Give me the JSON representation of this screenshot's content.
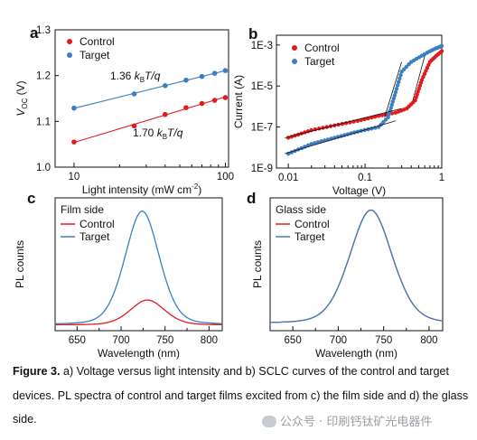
{
  "chart_data": [
    {
      "panel": "a",
      "type": "scatter",
      "xlabel": "Light intensity (mW cm",
      "xlabel_sup": "-2",
      "xlabel_end": ")",
      "ylabel": "V",
      "ylabel_sub": "OC",
      "ylabel_unit": " (V)",
      "xscale": "log",
      "xlim": [
        7.5,
        105
      ],
      "ylim": [
        1.0,
        1.3
      ],
      "xticks": [
        10,
        100
      ],
      "xtick_labels": [
        "10",
        "100"
      ],
      "yticks": [
        1.0,
        1.1,
        1.2,
        1.3
      ],
      "ytick_labels": [
        "1.0",
        "1.1",
        "1.2",
        "1.3"
      ],
      "legend_position": "top-left",
      "series": [
        {
          "name": "Control",
          "color": "#e31a1c",
          "x": [
            10,
            25,
            40,
            55,
            70,
            85,
            100
          ],
          "y": [
            1.055,
            1.09,
            1.115,
            1.13,
            1.139,
            1.146,
            1.152
          ]
        },
        {
          "name": "Target",
          "color": "#3a7fc1",
          "x": [
            10,
            25,
            40,
            55,
            70,
            85,
            100
          ],
          "y": [
            1.129,
            1.16,
            1.178,
            1.19,
            1.198,
            1.205,
            1.211
          ]
        }
      ],
      "annotations": [
        {
          "prefix": "1.36 ",
          "k": "k",
          "B": "B",
          "suffix": "T/q",
          "series": "Target"
        },
        {
          "prefix": "1.70 ",
          "k": "k",
          "B": "B",
          "suffix": "T/q",
          "series": "Control"
        }
      ]
    },
    {
      "panel": "b",
      "type": "scatter",
      "xlabel": "Voltage (V)",
      "ylabel": "Current (A)",
      "xscale": "log",
      "yscale": "log",
      "xlim": [
        0.007,
        1.0
      ],
      "ylim": [
        1e-09,
        0.003
      ],
      "xtick_labels": [
        "0.01",
        "0.1",
        "1"
      ],
      "ytick_labels": [
        "1E-9",
        "1E-7",
        "1E-5",
        "1E-3"
      ],
      "legend_position": "top-left",
      "series": [
        {
          "name": "Control",
          "color": "#e31a1c",
          "x": [
            0.01,
            0.02,
            0.04,
            0.08,
            0.15,
            0.25,
            0.35,
            0.45,
            0.55,
            0.7,
            0.85,
            1.0
          ],
          "y": [
            3e-08,
            7e-08,
            1.2e-07,
            2e-07,
            3.5e-07,
            5e-07,
            8e-07,
            2e-06,
            2e-05,
            0.00015,
            0.0003,
            0.0005
          ]
        },
        {
          "name": "Target",
          "color": "#3a7fc1",
          "x": [
            0.01,
            0.02,
            0.04,
            0.08,
            0.15,
            0.2,
            0.25,
            0.3,
            0.4,
            0.55,
            0.7,
            0.85,
            1.0
          ],
          "y": [
            5e-09,
            1.5e-08,
            3e-08,
            6e-08,
            1e-07,
            3e-07,
            5e-06,
            5e-05,
            0.00015,
            0.0003,
            0.0005,
            0.0007,
            0.0009
          ]
        }
      ]
    },
    {
      "panel": "c",
      "type": "line",
      "xlabel": "Wavelength (nm)",
      "ylabel": "PL counts",
      "xlim": [
        625,
        815
      ],
      "xticks": [
        650,
        700,
        750,
        800
      ],
      "xtick_labels": [
        "650",
        "700",
        "750",
        "800"
      ],
      "legend_title": "Film side",
      "legend_position": "top-left",
      "series": [
        {
          "name": "Control",
          "color": "#e31a1c",
          "peak": 730,
          "sigma": 20,
          "amp": 0.22,
          "base": 0.01
        },
        {
          "name": "Target",
          "color": "#3a7fc1",
          "peak": 724,
          "sigma": 20,
          "amp": 1.0,
          "base": 0.01
        }
      ]
    },
    {
      "panel": "d",
      "type": "line",
      "xlabel": "Wavelength (nm)",
      "ylabel": "PL counts",
      "xlim": [
        625,
        815
      ],
      "xticks": [
        650,
        700,
        750,
        800
      ],
      "xtick_labels": [
        "650",
        "700",
        "750",
        "800"
      ],
      "legend_title": "Glass side",
      "legend_position": "top-left",
      "series": [
        {
          "name": "Control",
          "color": "#e31a1c",
          "peak": 736,
          "sigma": 24,
          "amp": 1.0,
          "base": 0.02
        },
        {
          "name": "Target",
          "color": "#3a7fc1",
          "peak": 736,
          "sigma": 24,
          "amp": 1.0,
          "base": 0.02
        }
      ]
    }
  ],
  "caption": {
    "figure_label": "Figure 3.",
    "text": " a) Voltage versus light intensity and b) SCLC curves of the control and target devices. PL spectra of control and target films excited from c) the film side and d) the glass side."
  },
  "watermark": "公众号 · 印刷钙钛矿光电器件"
}
